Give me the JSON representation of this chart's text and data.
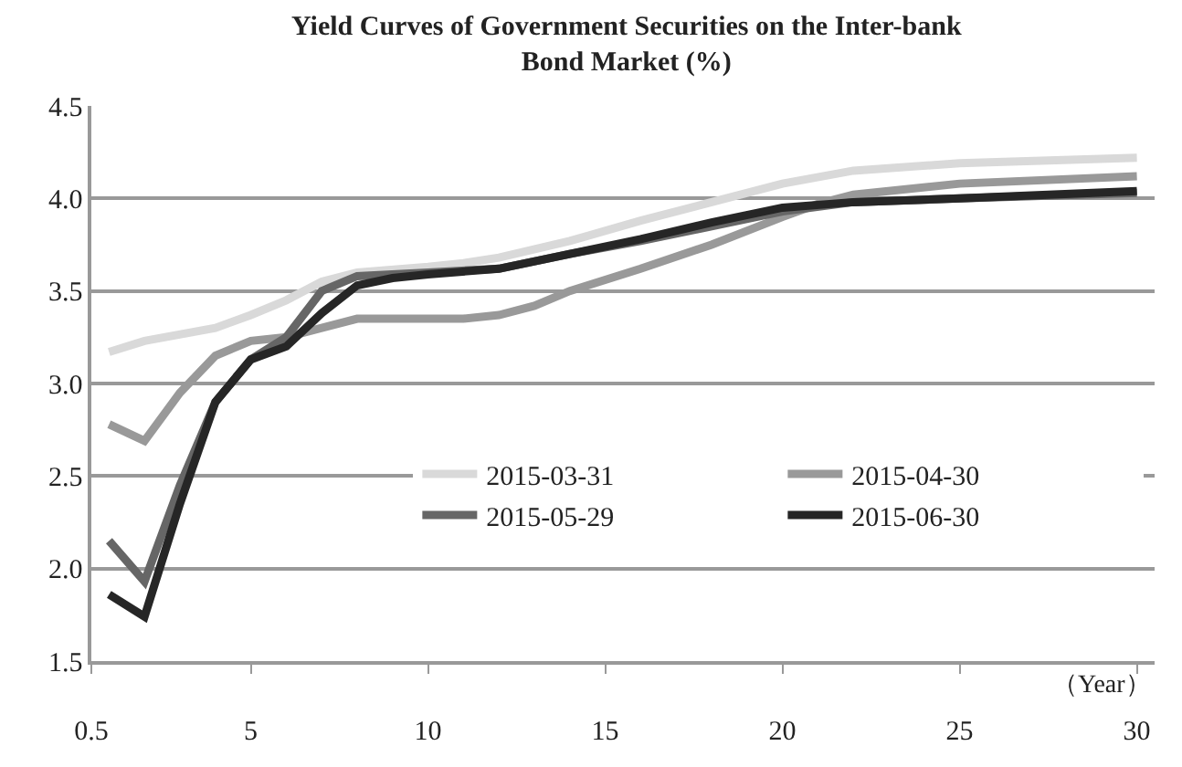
{
  "chart_data": {
    "type": "line",
    "title": "Yield Curves of Government Securities on the Inter-bank Bond Market (%)",
    "xlabel": "（Year）",
    "xlim": [
      0.5,
      30.5
    ],
    "xticks": [
      0.5,
      5,
      10,
      15,
      20,
      25,
      30
    ],
    "ylim": [
      1.5,
      4.5
    ],
    "yticks": [
      {
        "value": 1.5,
        "label": "1.5"
      },
      {
        "value": 2,
        "label": "2.0"
      },
      {
        "value": 2.5,
        "label": "2.5"
      },
      {
        "value": 3,
        "label": "3.0"
      },
      {
        "value": 3.5,
        "label": "3.5"
      },
      {
        "value": 4,
        "label": "4.0"
      },
      {
        "value": 4.5,
        "label": "4.5"
      }
    ],
    "grid": "y",
    "legend": "right",
    "marker": "none",
    "line_style": "solid",
    "series": [
      {
        "name": "2015-03-31",
        "color": "#d9d9d9",
        "x": [
          1,
          2,
          4,
          5,
          6,
          7,
          8,
          10,
          11,
          12,
          14,
          16,
          18,
          20,
          22,
          25,
          30
        ],
        "values": [
          3.17,
          3.23,
          3.3,
          3.37,
          3.45,
          3.55,
          3.6,
          3.63,
          3.65,
          3.68,
          3.77,
          3.88,
          3.98,
          4.08,
          4.15,
          4.19,
          4.22
        ]
      },
      {
        "name": "2015-04-30",
        "color": "#999999",
        "x": [
          1,
          2,
          3,
          4,
          5,
          6,
          7,
          8,
          10,
          11,
          12,
          13,
          14,
          16,
          18,
          20,
          21,
          22,
          25,
          30
        ],
        "values": [
          2.78,
          2.69,
          2.95,
          3.15,
          3.23,
          3.25,
          3.3,
          3.35,
          3.35,
          3.35,
          3.37,
          3.42,
          3.5,
          3.62,
          3.75,
          3.9,
          3.97,
          4.02,
          4.08,
          4.12
        ]
      },
      {
        "name": "2015-05-29",
        "color": "#666666",
        "x": [
          1,
          2,
          3,
          4,
          5,
          6,
          7,
          8,
          10,
          12,
          14,
          16,
          18,
          20,
          22,
          25,
          30
        ],
        "values": [
          2.15,
          1.93,
          2.45,
          2.9,
          3.13,
          3.25,
          3.5,
          3.58,
          3.6,
          3.62,
          3.7,
          3.77,
          3.85,
          3.93,
          3.98,
          4.0,
          4.03
        ]
      },
      {
        "name": "2015-06-30",
        "color": "#262626",
        "x": [
          1,
          2,
          3,
          4,
          5,
          6,
          7,
          8,
          9,
          10,
          12,
          14,
          16,
          18,
          20,
          22,
          25,
          30
        ],
        "values": [
          1.86,
          1.74,
          2.35,
          2.9,
          3.13,
          3.2,
          3.38,
          3.53,
          3.57,
          3.59,
          3.62,
          3.7,
          3.78,
          3.87,
          3.95,
          3.98,
          4.0,
          4.04
        ]
      }
    ]
  }
}
